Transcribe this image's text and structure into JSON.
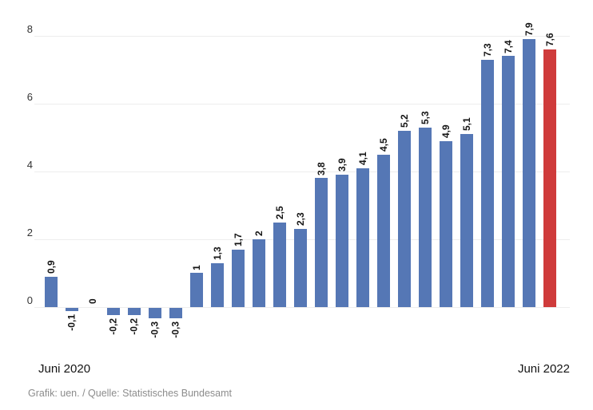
{
  "chart_data": {
    "type": "bar",
    "title": "",
    "x_axis": {
      "start_label": "Juni 2020",
      "end_label": "Juni 2022"
    },
    "y_ticks": [
      0,
      2,
      4,
      6,
      8
    ],
    "ylim": [
      -0.5,
      8.3
    ],
    "grid": true,
    "legend": false,
    "values": [
      0.9,
      -0.1,
      0,
      -0.2,
      -0.2,
      -0.3,
      -0.3,
      1,
      1.3,
      1.7,
      2,
      2.5,
      2.3,
      3.8,
      3.9,
      4.1,
      4.5,
      5.2,
      5.3,
      4.9,
      5.1,
      7.3,
      7.4,
      7.9,
      7.6
    ],
    "value_labels": [
      "0,9",
      "-0,1",
      "0",
      "-0,2",
      "-0,2",
      "-0,3",
      "-0,3",
      "1",
      "1,3",
      "1,7",
      "2",
      "2,5",
      "2,3",
      "3,8",
      "3,9",
      "4,1",
      "4,5",
      "5,2",
      "5,3",
      "4,9",
      "5,1",
      "7,3",
      "7,4",
      "7,9",
      "7,6"
    ],
    "highlight_index": 24,
    "colors": {
      "bar": "#5577b5",
      "highlight": "#cf3b3b",
      "gridline": "#ededed"
    }
  },
  "footer": {
    "credit": "Grafik: uen. / Quelle: Statistisches Bundesamt"
  }
}
